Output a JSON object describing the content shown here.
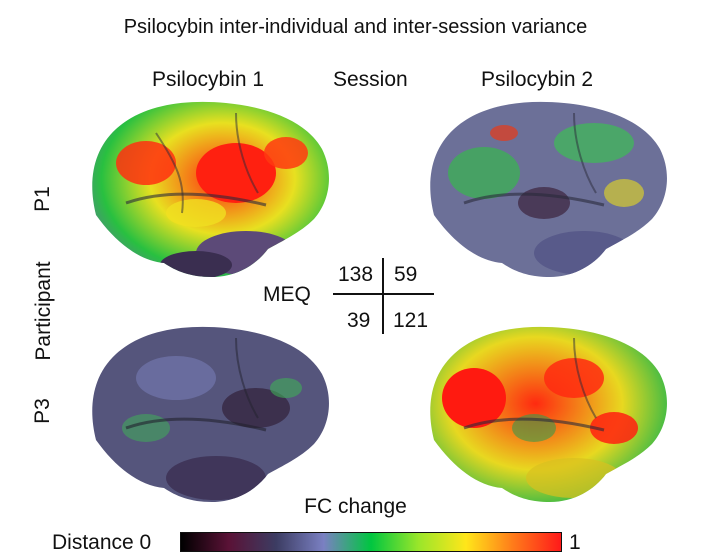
{
  "title": "Psilocybin inter-individual and inter-session variance",
  "columns": {
    "left": "Psilocybin 1",
    "middle": "Session",
    "right": "Psilocybin 2"
  },
  "rows": {
    "axis_label": "Participant",
    "p1": "P1",
    "p3": "P3"
  },
  "meq": {
    "label": "MEQ",
    "p1_session1": "138",
    "p1_session2": "59",
    "p3_session1": "39",
    "p3_session2": "121"
  },
  "brains": [
    {
      "participant": "P1",
      "session": "Psilocybin 1",
      "fc_change_level": "high"
    },
    {
      "participant": "P1",
      "session": "Psilocybin 2",
      "fc_change_level": "low"
    },
    {
      "participant": "P3",
      "session": "Psilocybin 1",
      "fc_change_level": "low"
    },
    {
      "participant": "P3",
      "session": "Psilocybin 2",
      "fc_change_level": "high"
    }
  ],
  "colorbar": {
    "caption": "FC change",
    "label": "Distance 0",
    "max": "1",
    "colors": [
      "#000000",
      "#5a1236",
      "#3c3c62",
      "#7a80c2",
      "#00c640",
      "#9ae62a",
      "#ffe61a",
      "#ff7a1a",
      "#ff1a1a"
    ]
  }
}
